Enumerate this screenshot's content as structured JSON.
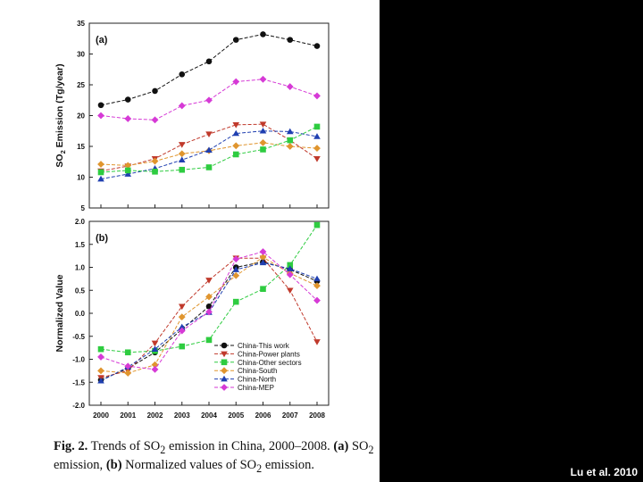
{
  "caption": {
    "fig_label": "Fig. 2.",
    "text_part1": "Trends of SO",
    "sub_2": "2",
    "text_part2": " emission in China, 2000–2008.",
    "a_label": "(a)",
    "text_part3": " SO",
    "text_part4": " emission,",
    "b_label": "(b)",
    "text_part5": " Normalized values of SO",
    "text_part6": " emission."
  },
  "credit": "Lu et al. 2010",
  "colors": {
    "china_this_work": "#111111",
    "power_plants": "#c0392b",
    "other_sectors": "#2ecc40",
    "south": "#e0952e",
    "north": "#1f3fb0",
    "mep": "#d63ad6"
  },
  "chart_data": [
    {
      "type": "line",
      "panel": "(a)",
      "ylabel_main": "SO",
      "ylabel_sub": "2",
      "ylabel_rest": " Emission (Tg/year)",
      "ylim": [
        5,
        35
      ],
      "yticks": [
        "5",
        "10",
        "15",
        "20",
        "25",
        "30",
        "35"
      ],
      "x": [
        2000,
        2001,
        2002,
        2003,
        2004,
        2005,
        2006,
        2007,
        2008
      ],
      "series": [
        {
          "name": "China-This work",
          "marker": "circle",
          "values": [
            21.7,
            22.6,
            24.0,
            26.7,
            28.8,
            32.3,
            33.2,
            32.3,
            31.3
          ]
        },
        {
          "name": "China-MEP",
          "marker": "diamond",
          "values": [
            20.0,
            19.5,
            19.3,
            21.6,
            22.5,
            25.5,
            25.9,
            24.7,
            23.2
          ]
        },
        {
          "name": "China-Power plants",
          "marker": "tri_down",
          "values": [
            11.0,
            11.8,
            13.0,
            15.3,
            17.0,
            18.5,
            18.6,
            16.0,
            13.0
          ]
        },
        {
          "name": "China-South",
          "marker": "diamond",
          "values": [
            12.1,
            11.9,
            12.6,
            13.8,
            14.3,
            15.1,
            15.6,
            15.0,
            14.7
          ]
        },
        {
          "name": "China-North",
          "marker": "tri_up",
          "values": [
            9.7,
            10.5,
            11.4,
            12.8,
            14.4,
            17.1,
            17.5,
            17.4,
            16.6
          ]
        },
        {
          "name": "China-Other sectors",
          "marker": "square",
          "values": [
            10.8,
            11.1,
            10.9,
            11.2,
            11.6,
            13.7,
            14.5,
            16.0,
            18.2
          ]
        }
      ]
    },
    {
      "type": "line",
      "panel": "(b)",
      "ylabel": "Normalized Value",
      "ylim": [
        -2.0,
        2.0
      ],
      "yticks": [
        "-2.0",
        "-1.5",
        "-1.0",
        "-0.5",
        "0.0",
        "0.5",
        "1.0",
        "1.5",
        "2.0"
      ],
      "x": [
        2000,
        2001,
        2002,
        2003,
        2004,
        2005,
        2006,
        2007,
        2008
      ],
      "xticks": [
        "2000",
        "2001",
        "2002",
        "2003",
        "2004",
        "2005",
        "2006",
        "2007",
        "2008"
      ],
      "legend": [
        "China-This work",
        "China-Power plants",
        "China-Other sectors",
        "China-South",
        "China-North",
        "China-MEP"
      ],
      "series": [
        {
          "name": "China-This work",
          "marker": "circle",
          "values": [
            -1.45,
            -1.2,
            -0.85,
            -0.35,
            0.15,
            1.0,
            1.12,
            0.95,
            0.7
          ]
        },
        {
          "name": "China-Power plants",
          "marker": "tri_down",
          "values": [
            -1.4,
            -1.25,
            -0.65,
            0.15,
            0.72,
            1.2,
            1.2,
            0.5,
            -0.62
          ]
        },
        {
          "name": "China-Other sectors",
          "marker": "square",
          "values": [
            -0.78,
            -0.85,
            -0.82,
            -0.72,
            -0.58,
            0.25,
            0.53,
            1.05,
            1.92
          ]
        },
        {
          "name": "China-South",
          "marker": "diamond",
          "values": [
            -1.25,
            -1.3,
            -1.12,
            -0.08,
            0.36,
            0.82,
            1.22,
            0.87,
            0.6
          ]
        },
        {
          "name": "China-North",
          "marker": "tri_up",
          "values": [
            -1.47,
            -1.17,
            -0.78,
            -0.3,
            0.02,
            0.95,
            1.1,
            0.97,
            0.75
          ]
        },
        {
          "name": "China-MEP",
          "marker": "diamond",
          "values": [
            -0.95,
            -1.15,
            -1.22,
            -0.38,
            0.03,
            1.18,
            1.34,
            0.84,
            0.28
          ]
        }
      ]
    }
  ]
}
